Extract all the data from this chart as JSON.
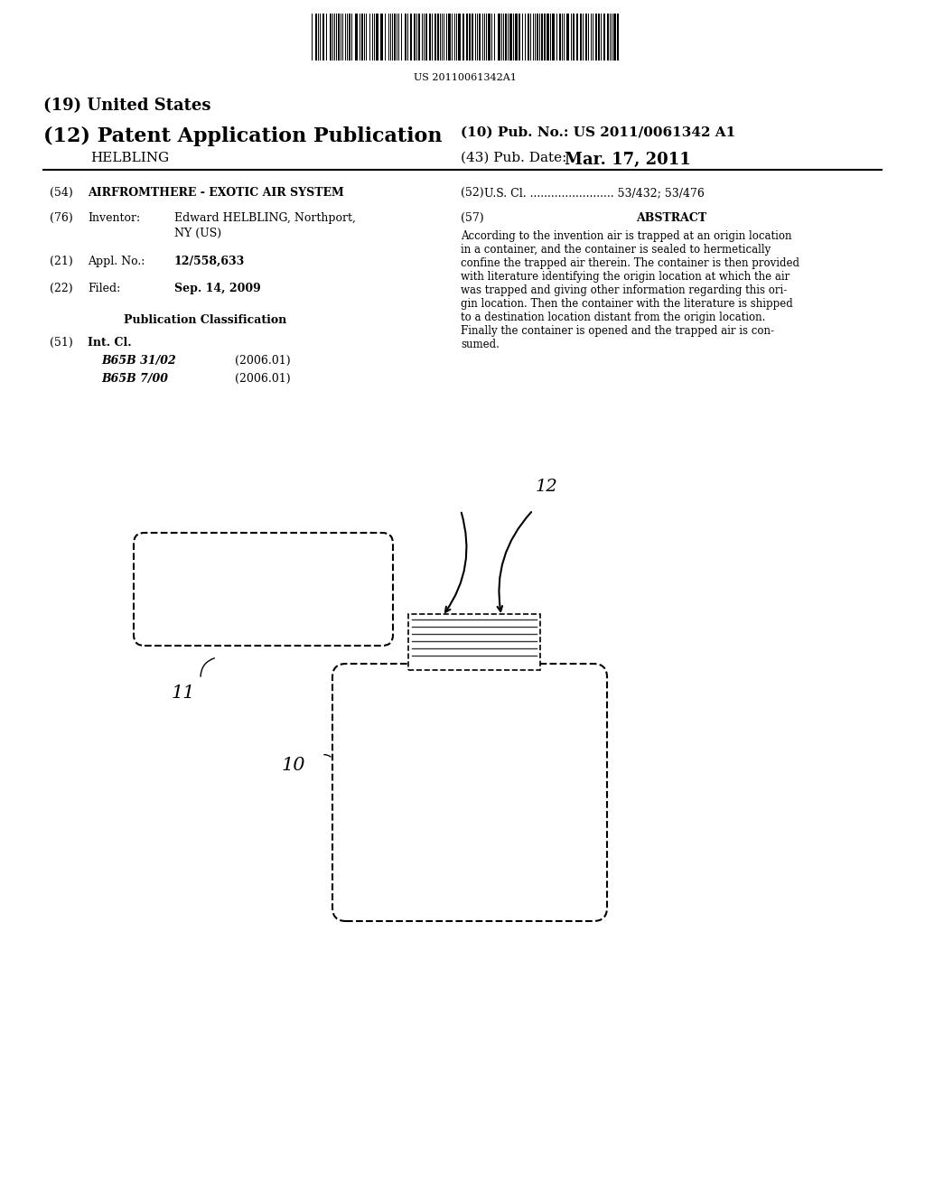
{
  "bg_color": "#ffffff",
  "barcode_text": "US 20110061342A1",
  "title_19": "(19) United States",
  "title_12": "(12) Patent Application Publication",
  "title_10": "(10) Pub. No.: US 2011/0061342 A1",
  "inventor_name": "HELBLING",
  "pub_date_label": "(43) Pub. Date:",
  "pub_date_value": "Mar. 17, 2011",
  "field54_label": "(54)",
  "field54_value": "AIRFROMTHERE - EXOTIC AIR SYSTEM",
  "field52_label": "(52)",
  "field52_value": "U.S. Cl. ........................ 53/432; 53/476",
  "field76_label": "(76)",
  "field76_key": "Inventor:",
  "field76_value1": "Edward HELBLING, Northport,",
  "field76_value2": "NY (US)",
  "field57_label": "(57)",
  "field57_title": "ABSTRACT",
  "abstract_lines": [
    "According to the invention air is trapped at an origin location",
    "in a container, and the container is sealed to hermetically",
    "confine the trapped air therein. The container is then provided",
    "with literature identifying the origin location at which the air",
    "was trapped and giving other information regarding this ori-",
    "gin location. Then the container with the literature is shipped",
    "to a destination location distant from the origin location.",
    "Finally the container is opened and the trapped air is con-",
    "sumed."
  ],
  "field21_label": "(21)",
  "field21_key": "Appl. No.:",
  "field21_value": "12/558,633",
  "field22_label": "(22)",
  "field22_key": "Filed:",
  "field22_value": "Sep. 14, 2009",
  "pub_class_title": "Publication Classification",
  "field51_label": "(51)",
  "field51_key": "Int. Cl.",
  "field51_class1": "B65B 31/02",
  "field51_date1": "(2006.01)",
  "field51_class2": "B65B 7/00",
  "field51_date2": "(2006.01)",
  "label_11": "11",
  "label_12_fig": "12",
  "label_10": "10",
  "text_color": "#000000",
  "line_color": "#000000"
}
